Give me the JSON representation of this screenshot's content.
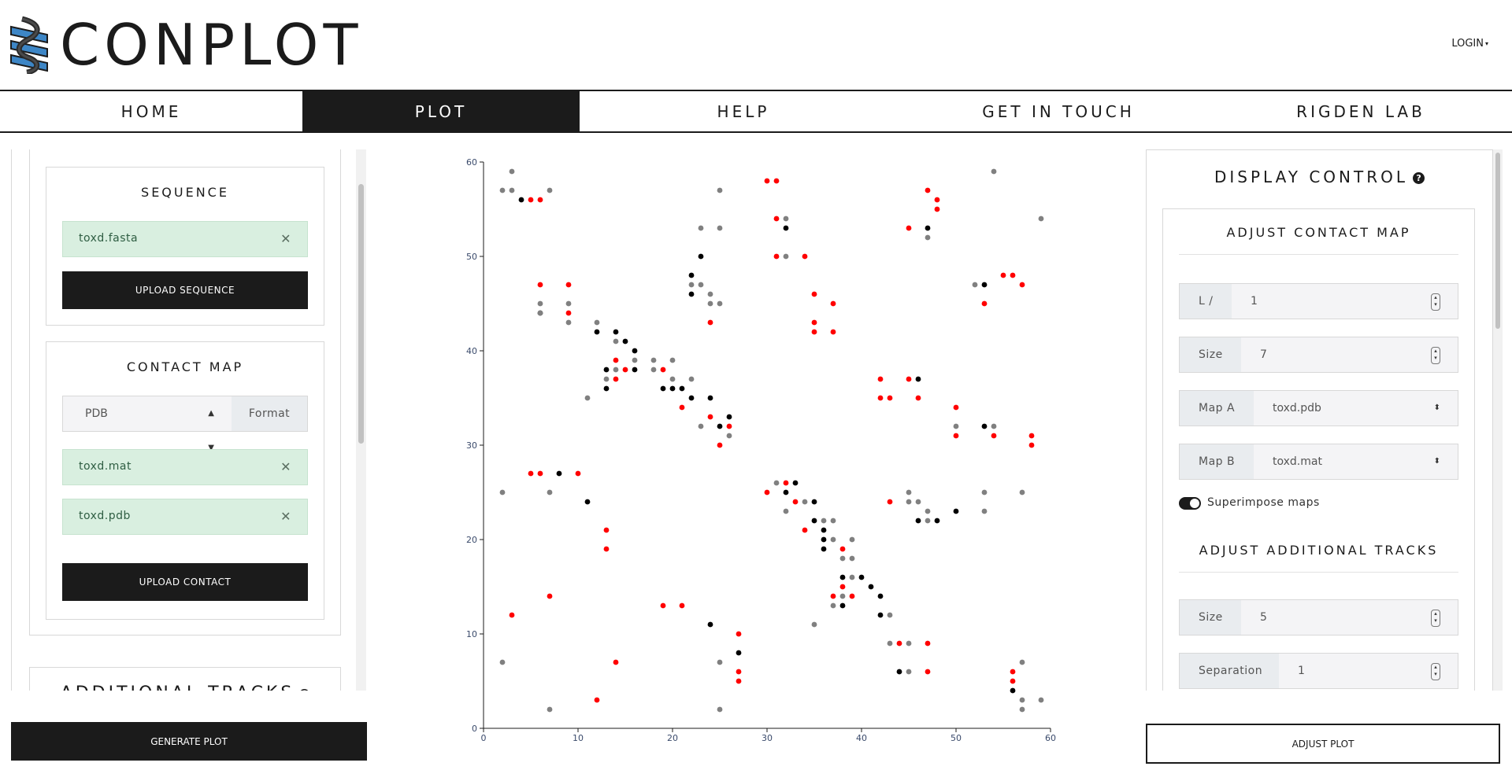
{
  "app": {
    "title": "CONPLOT",
    "login_label": "LOGIN"
  },
  "nav": {
    "items": [
      {
        "label": "HOME",
        "active": false
      },
      {
        "label": "PLOT",
        "active": true
      },
      {
        "label": "HELP",
        "active": false
      },
      {
        "label": "GET IN TOUCH",
        "active": false
      },
      {
        "label": "RIGDEN LAB",
        "active": false
      }
    ]
  },
  "left": {
    "sequence": {
      "title": "SEQUENCE",
      "file": "toxd.fasta",
      "upload_label": "UPLOAD SEQUENCE"
    },
    "contact_map": {
      "title": "CONTACT MAP",
      "format_value": "PDB",
      "format_label": "Format",
      "files": [
        "toxd.mat",
        "toxd.pdb"
      ],
      "upload_label": "UPLOAD CONTACT"
    },
    "additional_tracks_title": "ADDITIONAL TRACKS",
    "generate_label": "GENERATE PLOT"
  },
  "right": {
    "title": "DISPLAY CONTROL",
    "adjust_contact_map": {
      "title": "ADJUST CONTACT MAP",
      "fields": [
        {
          "label": "L /",
          "value": "1",
          "kind": "number"
        },
        {
          "label": "Size",
          "value": "7",
          "kind": "number"
        },
        {
          "label": "Map A",
          "value": "toxd.pdb",
          "kind": "select"
        },
        {
          "label": "Map B",
          "value": "toxd.mat",
          "kind": "select"
        }
      ],
      "superimpose_label": "Superimpose maps",
      "superimpose_on": true
    },
    "adjust_additional_tracks": {
      "title": "ADJUST ADDITIONAL TRACKS",
      "fields": [
        {
          "label": "Size",
          "value": "5",
          "kind": "number"
        },
        {
          "label": "Separation",
          "value": "1",
          "kind": "number"
        }
      ]
    },
    "adjust_label": "ADJUST PLOT"
  },
  "icons": {
    "close": "close-icon",
    "help": "help-icon",
    "logo": "helix-logo-icon"
  },
  "colors": {
    "dark": "#1b1b1b",
    "chip_bg": "#d9efe0",
    "match": "#000000",
    "map_a_only": "#808080",
    "map_b_only": "#ff0000"
  },
  "chart_data": {
    "type": "scatter",
    "xlim": [
      0,
      60
    ],
    "ylim": [
      0,
      60
    ],
    "xticks": [
      0,
      10,
      20,
      30,
      40,
      50,
      60
    ],
    "yticks": [
      0,
      10,
      20,
      30,
      40,
      50,
      60
    ],
    "series": [
      {
        "color": "#000000",
        "points": [
          [
            4,
            56
          ],
          [
            6,
            44
          ],
          [
            12,
            42
          ],
          [
            13,
            38
          ],
          [
            13,
            36
          ],
          [
            14,
            42
          ],
          [
            15,
            41
          ],
          [
            16,
            40
          ],
          [
            16,
            38
          ],
          [
            19,
            36
          ],
          [
            20,
            36
          ],
          [
            21,
            36
          ],
          [
            22,
            35
          ],
          [
            22,
            48
          ],
          [
            22,
            46
          ],
          [
            23,
            50
          ],
          [
            24,
            35
          ],
          [
            25,
            32
          ],
          [
            26,
            33
          ],
          [
            32,
            53
          ],
          [
            33,
            26
          ],
          [
            32,
            25
          ],
          [
            35,
            24
          ],
          [
            35,
            22
          ],
          [
            36,
            21
          ],
          [
            36,
            20
          ],
          [
            36,
            19
          ],
          [
            38,
            16
          ],
          [
            38,
            13
          ],
          [
            40,
            16
          ],
          [
            41,
            15
          ],
          [
            42,
            14
          ],
          [
            42,
            12
          ],
          [
            47,
            53
          ],
          [
            46,
            37
          ],
          [
            46,
            22
          ],
          [
            48,
            22
          ],
          [
            50,
            23
          ],
          [
            53,
            32
          ],
          [
            53,
            47
          ],
          [
            8,
            27
          ],
          [
            11,
            24
          ],
          [
            24,
            11
          ],
          [
            27,
            8
          ],
          [
            44,
            6
          ],
          [
            56,
            4
          ]
        ]
      },
      {
        "color": "#808080",
        "points": [
          [
            2,
            57
          ],
          [
            3,
            57
          ],
          [
            3,
            59
          ],
          [
            7,
            57
          ],
          [
            6,
            45
          ],
          [
            6,
            44
          ],
          [
            9,
            45
          ],
          [
            9,
            43
          ],
          [
            11,
            35
          ],
          [
            12,
            43
          ],
          [
            13,
            37
          ],
          [
            14,
            38
          ],
          [
            14,
            41
          ],
          [
            16,
            39
          ],
          [
            18,
            39
          ],
          [
            18,
            38
          ],
          [
            20,
            39
          ],
          [
            20,
            37
          ],
          [
            22,
            47
          ],
          [
            22,
            37
          ],
          [
            23,
            47
          ],
          [
            23,
            53
          ],
          [
            23,
            32
          ],
          [
            24,
            46
          ],
          [
            24,
            45
          ],
          [
            25,
            45
          ],
          [
            25,
            53
          ],
          [
            25,
            57
          ],
          [
            26,
            31
          ],
          [
            31,
            26
          ],
          [
            32,
            54
          ],
          [
            32,
            23
          ],
          [
            32,
            50
          ],
          [
            34,
            24
          ],
          [
            36,
            22
          ],
          [
            37,
            22
          ],
          [
            37,
            20
          ],
          [
            38,
            18
          ],
          [
            39,
            20
          ],
          [
            39,
            18
          ],
          [
            39,
            16
          ],
          [
            38,
            14
          ],
          [
            37,
            13
          ],
          [
            43,
            12
          ],
          [
            43,
            9
          ],
          [
            45,
            9
          ],
          [
            45,
            25
          ],
          [
            45,
            24
          ],
          [
            46,
            24
          ],
          [
            47,
            23
          ],
          [
            47,
            22
          ],
          [
            47,
            52
          ],
          [
            50,
            32
          ],
          [
            52,
            47
          ],
          [
            53,
            25
          ],
          [
            53,
            23
          ],
          [
            54,
            32
          ],
          [
            54,
            59
          ],
          [
            57,
            25
          ],
          [
            59,
            54
          ],
          [
            2,
            25
          ],
          [
            2,
            7
          ],
          [
            7,
            25
          ],
          [
            7,
            2
          ],
          [
            25,
            7
          ],
          [
            25,
            2
          ],
          [
            35,
            11
          ],
          [
            45,
            6
          ],
          [
            57,
            7
          ],
          [
            57,
            3
          ],
          [
            57,
            2
          ],
          [
            59,
            3
          ]
        ]
      },
      {
        "color": "#ff0000",
        "points": [
          [
            5,
            56
          ],
          [
            6,
            56
          ],
          [
            6,
            47
          ],
          [
            9,
            47
          ],
          [
            9,
            44
          ],
          [
            14,
            39
          ],
          [
            14,
            37
          ],
          [
            15,
            38
          ],
          [
            19,
            38
          ],
          [
            21,
            34
          ],
          [
            24,
            43
          ],
          [
            24,
            33
          ],
          [
            25,
            30
          ],
          [
            26,
            32
          ],
          [
            30,
            58
          ],
          [
            31,
            58
          ],
          [
            31,
            54
          ],
          [
            31,
            50
          ],
          [
            34,
            50
          ],
          [
            35,
            46
          ],
          [
            35,
            43
          ],
          [
            35,
            42
          ],
          [
            37,
            45
          ],
          [
            37,
            42
          ],
          [
            42,
            37
          ],
          [
            42,
            35
          ],
          [
            43,
            35
          ],
          [
            45,
            37
          ],
          [
            45,
            53
          ],
          [
            46,
            35
          ],
          [
            47,
            57
          ],
          [
            48,
            56
          ],
          [
            48,
            55
          ],
          [
            50,
            34
          ],
          [
            50,
            31
          ],
          [
            53,
            45
          ],
          [
            54,
            31
          ],
          [
            55,
            48
          ],
          [
            56,
            48
          ],
          [
            57,
            47
          ],
          [
            58,
            31
          ],
          [
            58,
            30
          ],
          [
            5,
            27
          ],
          [
            6,
            27
          ],
          [
            10,
            27
          ],
          [
            13,
            21
          ],
          [
            13,
            19
          ],
          [
            3,
            12
          ],
          [
            7,
            14
          ],
          [
            12,
            3
          ],
          [
            14,
            7
          ],
          [
            19,
            13
          ],
          [
            21,
            13
          ],
          [
            27,
            10
          ],
          [
            27,
            6
          ],
          [
            27,
            5
          ],
          [
            30,
            25
          ],
          [
            32,
            26
          ],
          [
            33,
            24
          ],
          [
            34,
            21
          ],
          [
            38,
            19
          ],
          [
            38,
            15
          ],
          [
            37,
            14
          ],
          [
            39,
            14
          ],
          [
            43,
            24
          ],
          [
            44,
            9
          ],
          [
            47,
            9
          ],
          [
            47,
            6
          ],
          [
            56,
            6
          ],
          [
            56,
            5
          ]
        ]
      }
    ]
  }
}
